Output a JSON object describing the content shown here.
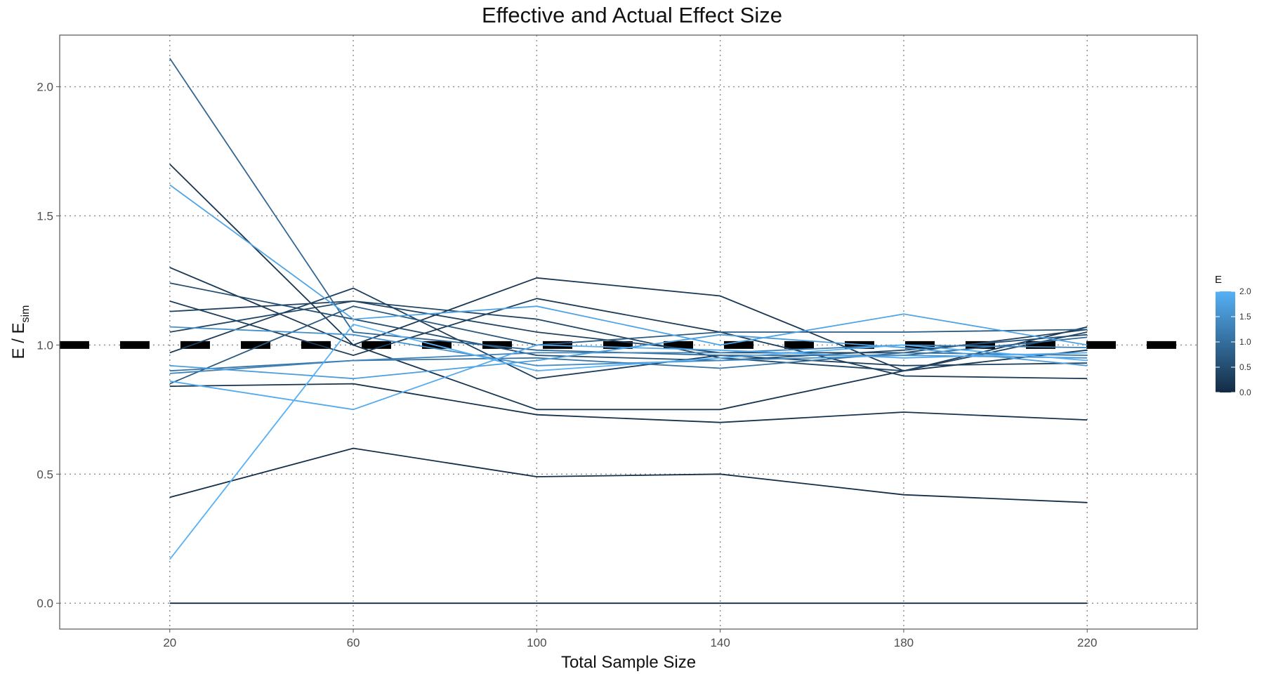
{
  "chart_data": {
    "type": "line",
    "title": "Effective and Actual Effect Size",
    "xlabel": "Total Sample Size",
    "ylabel": "E / E",
    "ylabel_subscript": "sim",
    "x": [
      20,
      60,
      100,
      140,
      180,
      220
    ],
    "xlim": [
      -4,
      244
    ],
    "ylim": [
      -0.1,
      2.2
    ],
    "x_ticks": [
      20,
      60,
      100,
      140,
      180,
      220
    ],
    "y_ticks": [
      0.0,
      0.5,
      1.0,
      1.5,
      2.0
    ],
    "y_tick_labels": [
      "0.0",
      "0.5",
      "1.0",
      "1.5",
      "2.0"
    ],
    "grid": true,
    "reference_line": {
      "y": 1.0,
      "style": "dashed",
      "color": "#000000"
    },
    "colorbar": {
      "title": "E",
      "range": [
        0,
        2
      ],
      "ticks": [
        0.0,
        0.5,
        1.0,
        1.5,
        2.0
      ],
      "tick_labels": [
        "0.0",
        "0.5",
        "1.0",
        "1.5",
        "2.0"
      ],
      "low_color": "#132b43",
      "high_color": "#56b1f7",
      "placement": "right"
    },
    "series": [
      {
        "effect": 0.0,
        "values": [
          0.0,
          0.0,
          0.0,
          0.0,
          0.0,
          0.0
        ]
      },
      {
        "effect": 0.05,
        "values": [
          0.41,
          0.6,
          0.49,
          0.5,
          0.42,
          0.39
        ]
      },
      {
        "effect": 0.1,
        "values": [
          0.84,
          0.85,
          0.73,
          0.7,
          0.74,
          0.71
        ]
      },
      {
        "effect": 0.15,
        "values": [
          1.7,
          1.0,
          0.75,
          0.75,
          0.9,
          0.98
        ]
      },
      {
        "effect": 0.2,
        "values": [
          1.3,
          1.0,
          1.26,
          1.19,
          0.9,
          1.07
        ]
      },
      {
        "effect": 0.25,
        "values": [
          1.17,
          0.96,
          1.18,
          1.05,
          0.88,
          0.87
        ]
      },
      {
        "effect": 0.3,
        "values": [
          0.97,
          1.22,
          0.87,
          0.96,
          0.92,
          0.93
        ]
      },
      {
        "effect": 0.35,
        "values": [
          1.13,
          1.17,
          1.05,
          0.97,
          0.97,
          1.06
        ]
      },
      {
        "effect": 0.4,
        "values": [
          1.05,
          1.17,
          1.1,
          0.95,
          0.9,
          1.05
        ]
      },
      {
        "effect": 0.5,
        "values": [
          1.24,
          1.1,
          0.96,
          0.94,
          0.98,
          1.04
        ]
      },
      {
        "effect": 0.7,
        "values": [
          0.85,
          1.15,
          1.0,
          1.05,
          1.05,
          1.06
        ]
      },
      {
        "effect": 0.9,
        "values": [
          2.11,
          1.05,
          0.98,
          0.96,
          0.96,
          1.03
        ]
      },
      {
        "effect": 1.1,
        "values": [
          0.9,
          0.94,
          0.95,
          0.91,
          0.97,
          0.96
        ]
      },
      {
        "effect": 1.3,
        "values": [
          0.89,
          0.94,
          0.97,
          0.97,
          1.0,
          0.99
        ]
      },
      {
        "effect": 1.5,
        "values": [
          1.07,
          1.04,
          0.92,
          0.94,
          0.96,
          0.95
        ]
      },
      {
        "effect": 1.7,
        "values": [
          0.92,
          0.87,
          0.94,
          1.04,
          0.99,
          0.92
        ]
      },
      {
        "effect": 1.8,
        "values": [
          1.62,
          1.1,
          1.15,
          1.0,
          1.12,
          1.0
        ]
      },
      {
        "effect": 1.9,
        "values": [
          0.86,
          0.75,
          1.0,
          0.98,
          0.95,
          0.97
        ]
      },
      {
        "effect": 2.0,
        "values": [
          0.17,
          1.08,
          0.9,
          0.95,
          1.0,
          0.94
        ]
      }
    ]
  }
}
